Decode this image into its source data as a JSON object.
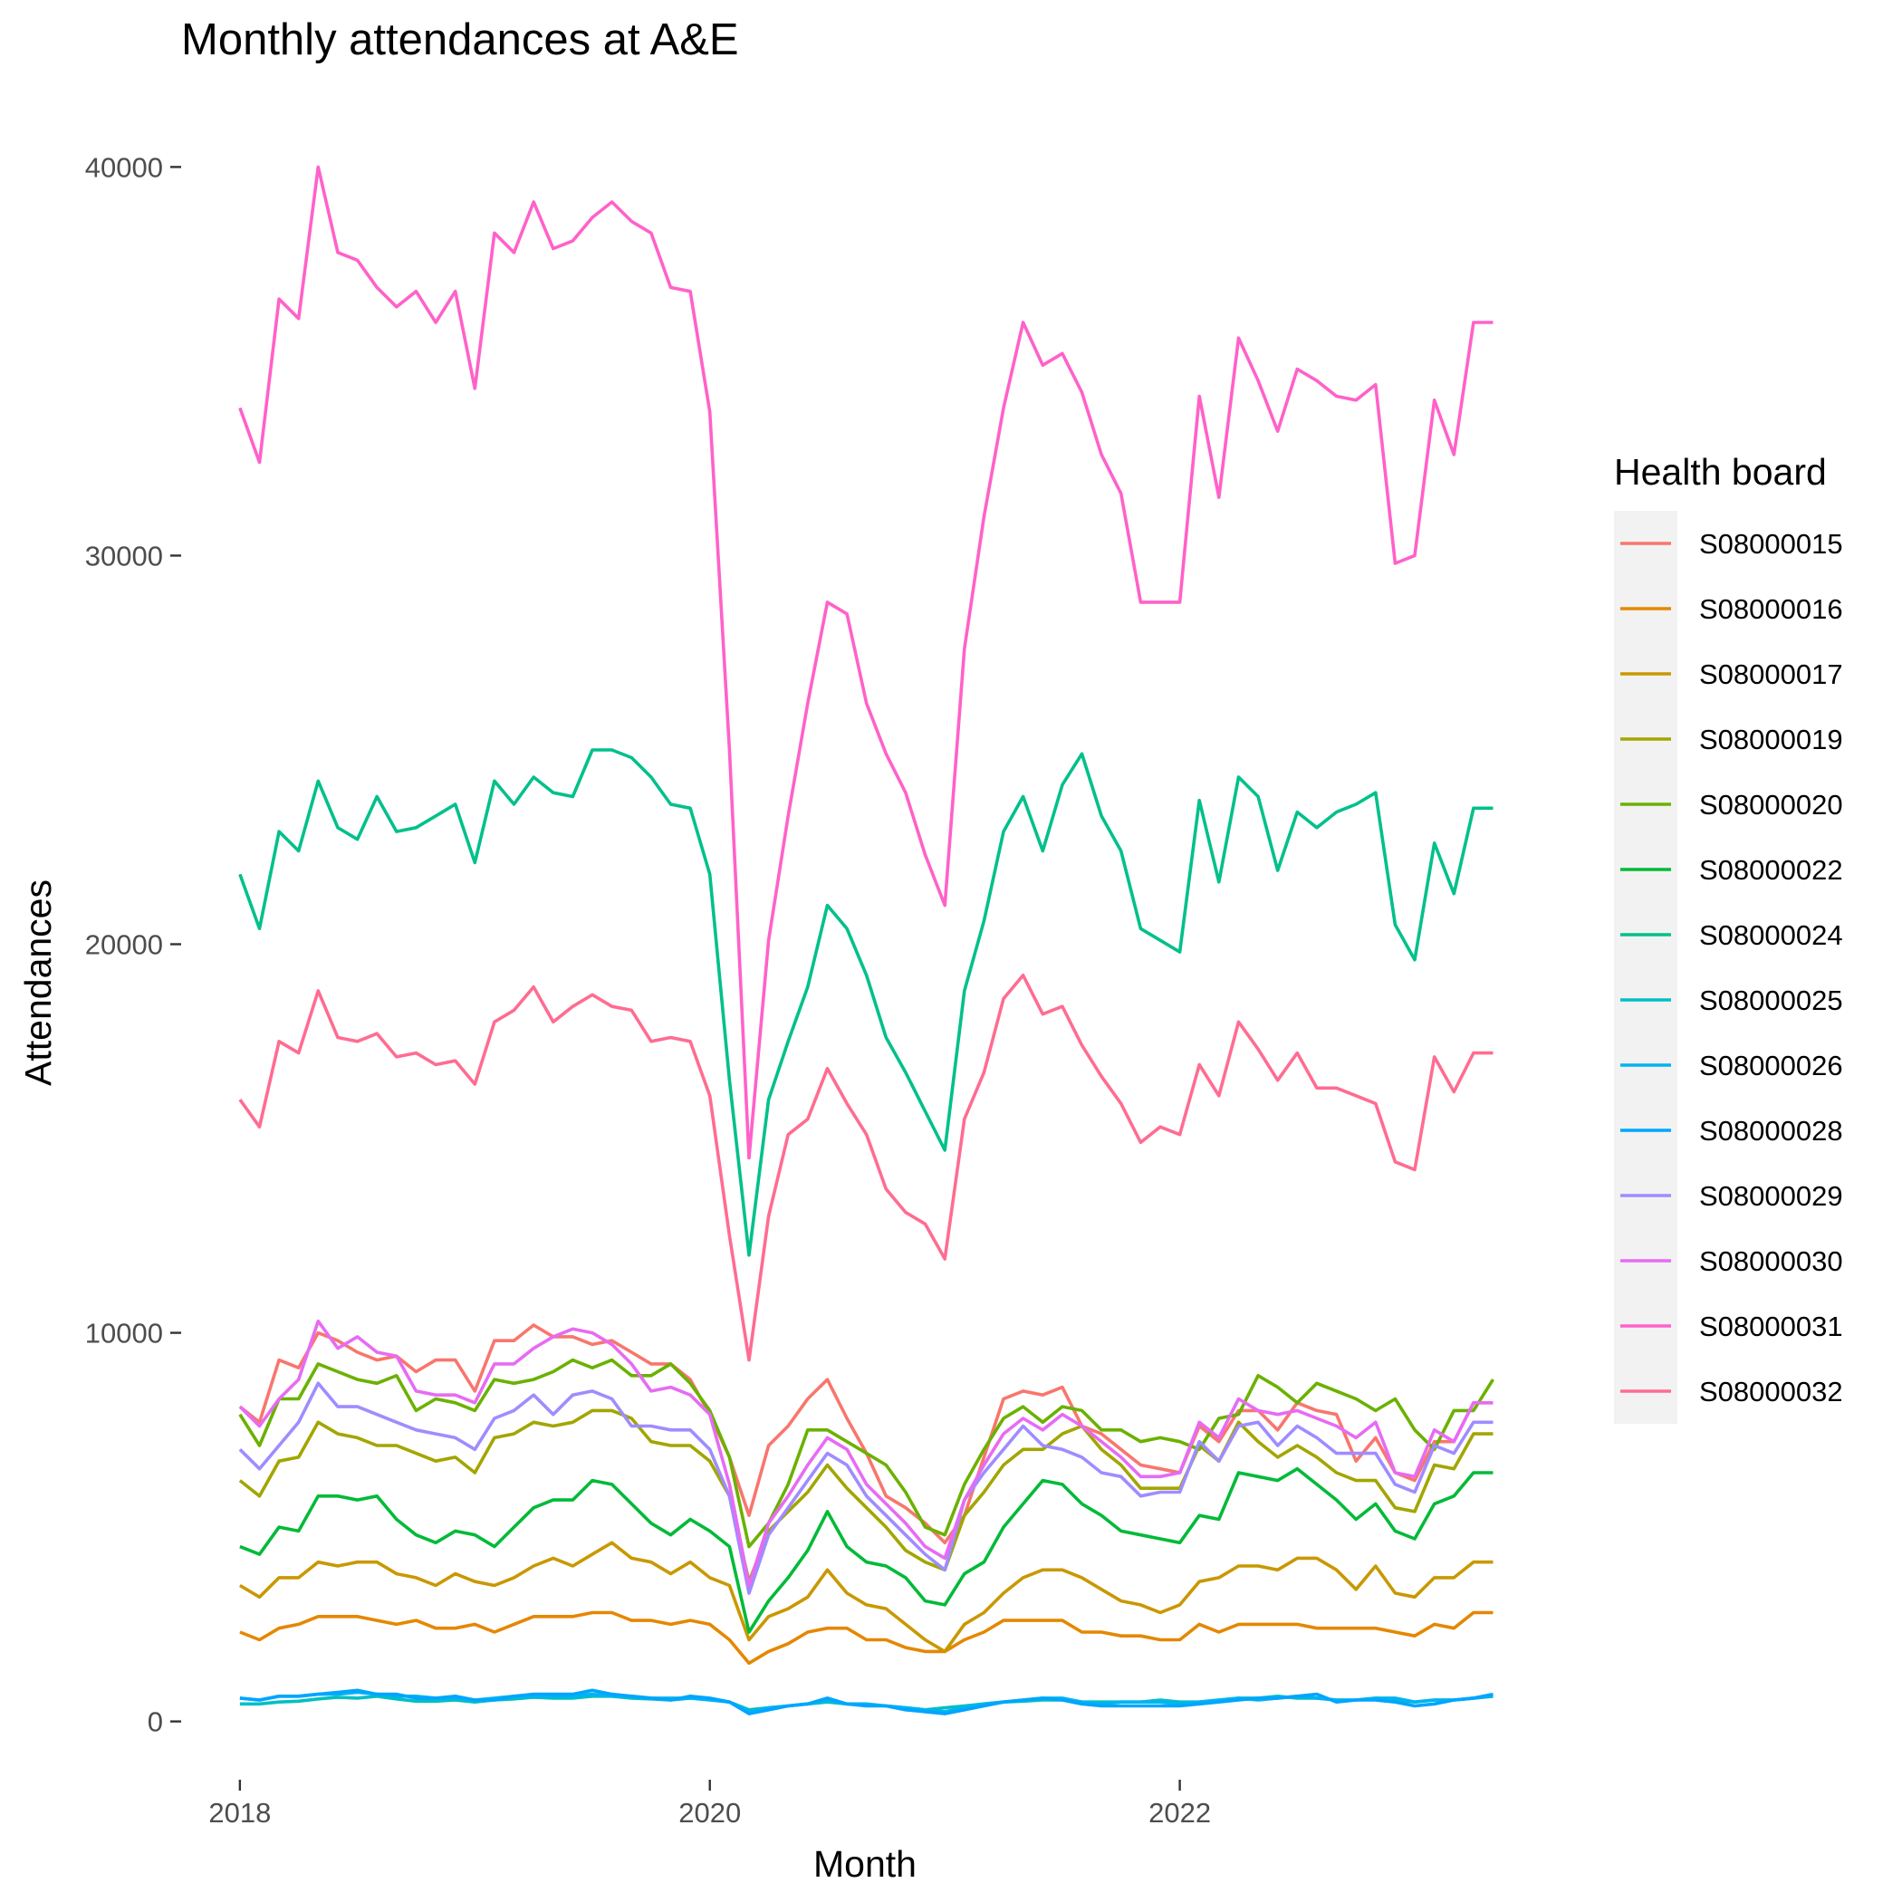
{
  "chart_data": {
    "type": "line",
    "title": "Monthly attendances at A&E",
    "xlabel": "Month",
    "ylabel": "Attendances",
    "x_ticks": [
      "2018",
      "2020",
      "2022"
    ],
    "y_ticks": [
      "0",
      "10000",
      "20000",
      "30000",
      "40000"
    ],
    "ylim": [
      -1500,
      41500
    ],
    "xlim": [
      "2017-10",
      "2023-09"
    ],
    "grid": false,
    "legend": {
      "title": "Health board",
      "placement": "right"
    },
    "x": [
      "2018-01",
      "2018-02",
      "2018-03",
      "2018-04",
      "2018-05",
      "2018-06",
      "2018-07",
      "2018-08",
      "2018-09",
      "2018-10",
      "2018-11",
      "2018-12",
      "2019-01",
      "2019-02",
      "2019-03",
      "2019-04",
      "2019-05",
      "2019-06",
      "2019-07",
      "2019-08",
      "2019-09",
      "2019-10",
      "2019-11",
      "2019-12",
      "2020-01",
      "2020-02",
      "2020-03",
      "2020-04",
      "2020-05",
      "2020-06",
      "2020-07",
      "2020-08",
      "2020-09",
      "2020-10",
      "2020-11",
      "2020-12",
      "2021-01",
      "2021-02",
      "2021-03",
      "2021-04",
      "2021-05",
      "2021-06",
      "2021-07",
      "2021-08",
      "2021-09",
      "2021-10",
      "2021-11",
      "2021-12",
      "2022-01",
      "2022-02",
      "2022-03",
      "2022-04",
      "2022-05",
      "2022-06",
      "2022-07",
      "2022-08",
      "2022-09",
      "2022-10",
      "2022-11",
      "2022-12",
      "2023-01",
      "2023-02",
      "2023-03",
      "2023-04",
      "2023-05"
    ],
    "series": [
      {
        "name": "S08000015",
        "color": "#F8766D",
        "values": [
          8100,
          7700,
          9300,
          9100,
          10000,
          9800,
          9500,
          9300,
          9400,
          9000,
          9300,
          9300,
          8500,
          9800,
          9800,
          10200,
          9900,
          9900,
          9700,
          9800,
          9500,
          9200,
          9200,
          8800,
          7900,
          6800,
          5300,
          7100,
          7600,
          8300,
          8800,
          7800,
          6900,
          5800,
          5500,
          5100,
          4600,
          5300,
          6800,
          8300,
          8500,
          8400,
          8600,
          7600,
          7400,
          7000,
          6600,
          6500,
          6400,
          7600,
          7200,
          8000,
          8000,
          7500,
          8200,
          8000,
          7900,
          6700,
          7300,
          6400,
          6200,
          7200,
          7200,
          8200,
          8200
        ]
      },
      {
        "name": "S08000016",
        "color": "#E58700",
        "values": [
          2300,
          2100,
          2400,
          2500,
          2700,
          2700,
          2700,
          2600,
          2500,
          2600,
          2400,
          2400,
          2500,
          2300,
          2500,
          2700,
          2700,
          2700,
          2800,
          2800,
          2600,
          2600,
          2500,
          2600,
          2500,
          2100,
          1500,
          1800,
          2000,
          2300,
          2400,
          2400,
          2100,
          2100,
          1900,
          1800,
          1800,
          2100,
          2300,
          2600,
          2600,
          2600,
          2600,
          2300,
          2300,
          2200,
          2200,
          2100,
          2100,
          2500,
          2300,
          2500,
          2500,
          2500,
          2500,
          2400,
          2400,
          2400,
          2400,
          2300,
          2200,
          2500,
          2400,
          2800,
          2800
        ]
      },
      {
        "name": "S08000017",
        "color": "#C99800",
        "values": [
          3500,
          3200,
          3700,
          3700,
          4100,
          4000,
          4100,
          4100,
          3800,
          3700,
          3500,
          3800,
          3600,
          3500,
          3700,
          4000,
          4200,
          4000,
          4300,
          4600,
          4200,
          4100,
          3800,
          4100,
          3700,
          3500,
          2100,
          2700,
          2900,
          3200,
          3900,
          3300,
          3000,
          2900,
          2500,
          2100,
          1800,
          2500,
          2800,
          3300,
          3700,
          3900,
          3900,
          3700,
          3400,
          3100,
          3000,
          2800,
          3000,
          3600,
          3700,
          4000,
          4000,
          3900,
          4200,
          4200,
          3900,
          3400,
          4000,
          3300,
          3200,
          3700,
          3700,
          4100,
          4100
        ]
      },
      {
        "name": "S08000019",
        "color": "#A3A500",
        "values": [
          6200,
          5800,
          6700,
          6800,
          7700,
          7400,
          7300,
          7100,
          7100,
          6900,
          6700,
          6800,
          6400,
          7300,
          7400,
          7700,
          7600,
          7700,
          8000,
          8000,
          7800,
          7200,
          7100,
          7100,
          6700,
          5800,
          3600,
          4900,
          5400,
          5900,
          6600,
          6000,
          5500,
          5000,
          4400,
          4100,
          3900,
          5300,
          5900,
          6600,
          7000,
          7000,
          7400,
          7600,
          7000,
          6600,
          6000,
          6000,
          6000,
          7100,
          6700,
          7700,
          7200,
          6800,
          7100,
          6800,
          6400,
          6200,
          6200,
          5500,
          5400,
          6600,
          6500,
          7400,
          7400
        ]
      },
      {
        "name": "S08000020",
        "color": "#6BB100",
        "values": [
          7900,
          7100,
          8300,
          8300,
          9200,
          9000,
          8800,
          8700,
          8900,
          8000,
          8300,
          8200,
          8000,
          8800,
          8700,
          8800,
          9000,
          9300,
          9100,
          9300,
          8900,
          8900,
          9200,
          8700,
          8000,
          6800,
          4500,
          5100,
          6100,
          7500,
          7500,
          7200,
          6900,
          6600,
          5900,
          5000,
          4800,
          6100,
          7000,
          7800,
          8100,
          7700,
          8100,
          8000,
          7500,
          7500,
          7200,
          7300,
          7200,
          7000,
          7800,
          7900,
          8900,
          8600,
          8200,
          8700,
          8500,
          8300,
          8000,
          8300,
          7500,
          7000,
          8000,
          8000,
          8800
        ]
      },
      {
        "name": "S08000022",
        "color": "#00BA38",
        "values": [
          4500,
          4300,
          5000,
          4900,
          5800,
          5800,
          5700,
          5800,
          5200,
          4800,
          4600,
          4900,
          4800,
          4500,
          5000,
          5500,
          5700,
          5700,
          6200,
          6100,
          5600,
          5100,
          4800,
          5200,
          4900,
          4500,
          2300,
          3100,
          3700,
          4400,
          5400,
          4500,
          4100,
          4000,
          3700,
          3100,
          3000,
          3800,
          4100,
          5000,
          5600,
          6200,
          6100,
          5600,
          5300,
          4900,
          4800,
          4700,
          4600,
          5300,
          5200,
          6400,
          6300,
          6200,
          6500,
          6100,
          5700,
          5200,
          5600,
          4900,
          4700,
          5600,
          5800,
          6400,
          6400
        ]
      },
      {
        "name": "S08000024",
        "color": "#00C08B",
        "values": [
          21800,
          20400,
          22900,
          22400,
          24200,
          23000,
          22700,
          23800,
          22900,
          23000,
          23300,
          23600,
          22100,
          24200,
          23600,
          24300,
          23900,
          23800,
          25000,
          25000,
          24800,
          24300,
          23600,
          23500,
          21800,
          16500,
          12000,
          16000,
          17500,
          18900,
          21000,
          20400,
          19200,
          17600,
          16700,
          15700,
          14700,
          18800,
          20600,
          22900,
          23800,
          22400,
          24100,
          24900,
          23300,
          22400,
          20400,
          20100,
          19800,
          23700,
          21600,
          24300,
          23800,
          21900,
          23400,
          23000,
          23400,
          23600,
          23900,
          20500,
          19600,
          22600,
          21300,
          23500,
          23500
        ]
      },
      {
        "name": "S08000025",
        "color": "#00BFC4",
        "values": [
          450,
          450,
          500,
          520,
          580,
          620,
          600,
          650,
          580,
          520,
          520,
          550,
          500,
          550,
          580,
          620,
          600,
          600,
          650,
          650,
          600,
          580,
          550,
          600,
          580,
          500,
          300,
          350,
          400,
          450,
          500,
          450,
          420,
          400,
          350,
          300,
          350,
          400,
          450,
          500,
          520,
          550,
          550,
          500,
          500,
          500,
          500,
          550,
          500,
          500,
          550,
          600,
          600,
          650,
          600,
          600,
          550,
          550,
          600,
          550,
          500,
          550,
          550,
          600,
          650
        ]
      },
      {
        "name": "S08000026",
        "color": "#00B4EF",
        "values": [
          600,
          550,
          650,
          650,
          700,
          700,
          750,
          700,
          650,
          650,
          600,
          600,
          550,
          600,
          650,
          650,
          650,
          650,
          700,
          650,
          650,
          600,
          600,
          600,
          550,
          500,
          250,
          350,
          400,
          450,
          550,
          450,
          450,
          400,
          350,
          300,
          250,
          350,
          450,
          500,
          550,
          600,
          600,
          500,
          450,
          500,
          500,
          500,
          450,
          500,
          550,
          600,
          550,
          600,
          650,
          600,
          550,
          550,
          600,
          600,
          500,
          550,
          550,
          600,
          650
        ]
      },
      {
        "name": "S08000028",
        "color": "#00A5FF",
        "values": [
          600,
          550,
          650,
          650,
          700,
          750,
          800,
          700,
          700,
          600,
          600,
          650,
          550,
          550,
          650,
          700,
          700,
          700,
          800,
          700,
          650,
          600,
          550,
          650,
          600,
          500,
          200,
          300,
          400,
          450,
          600,
          450,
          400,
          400,
          300,
          250,
          200,
          300,
          400,
          500,
          550,
          600,
          550,
          450,
          400,
          400,
          400,
          400,
          400,
          450,
          500,
          550,
          600,
          600,
          650,
          700,
          500,
          550,
          550,
          500,
          400,
          450,
          550,
          600,
          700
        ]
      },
      {
        "name": "S08000029",
        "color": "#9F8CFF",
        "values": [
          7000,
          6500,
          7100,
          7700,
          8700,
          8100,
          8100,
          7900,
          7700,
          7500,
          7400,
          7300,
          7000,
          7800,
          8000,
          8400,
          7900,
          8400,
          8500,
          8300,
          7600,
          7600,
          7500,
          7500,
          7000,
          5800,
          3300,
          4800,
          5500,
          6200,
          6900,
          6600,
          5800,
          5300,
          4800,
          4300,
          3900,
          5700,
          6400,
          7000,
          7600,
          7100,
          7000,
          6800,
          6400,
          6300,
          5800,
          5900,
          5900,
          7200,
          6700,
          7600,
          7700,
          7100,
          7600,
          7300,
          6900,
          6900,
          6900,
          6100,
          5900,
          7100,
          6900,
          7700,
          7700
        ]
      },
      {
        "name": "S08000030",
        "color": "#E76BF3",
        "values": [
          8100,
          7600,
          8300,
          8800,
          10300,
          9600,
          9900,
          9500,
          9400,
          8500,
          8400,
          8400,
          8200,
          9200,
          9200,
          9600,
          9900,
          10100,
          10000,
          9700,
          9200,
          8500,
          8600,
          8400,
          7900,
          6100,
          3500,
          5100,
          5800,
          6600,
          7300,
          7000,
          6100,
          5600,
          5100,
          4500,
          4200,
          5700,
          6600,
          7400,
          7800,
          7500,
          7900,
          7600,
          7200,
          6800,
          6300,
          6300,
          6400,
          7700,
          7300,
          8300,
          8000,
          7900,
          8000,
          7800,
          7600,
          7300,
          7700,
          6400,
          6300,
          7500,
          7200,
          8200,
          8200
        ]
      },
      {
        "name": "S08000031",
        "color": "#FF61C9",
        "values": [
          33800,
          32400,
          36600,
          36100,
          40000,
          37800,
          37600,
          36900,
          36400,
          36800,
          36000,
          36800,
          34300,
          38300,
          37800,
          39100,
          37900,
          38100,
          38700,
          39100,
          38600,
          38300,
          36900,
          36800,
          33700,
          25000,
          14500,
          20100,
          23300,
          26200,
          28800,
          28500,
          26200,
          24900,
          23900,
          22300,
          21000,
          27600,
          31000,
          33800,
          36000,
          34900,
          35200,
          34200,
          32600,
          31600,
          28800,
          28800,
          28800,
          34100,
          31500,
          35600,
          34500,
          33200,
          34800,
          34500,
          34100,
          34000,
          34400,
          29800,
          30000,
          34000,
          32600,
          36000,
          36000
        ]
      },
      {
        "name": "S08000032",
        "color": "#FF6C91",
        "values": [
          16000,
          15300,
          17500,
          17200,
          18800,
          17600,
          17500,
          17700,
          17100,
          17200,
          16900,
          17000,
          16400,
          18000,
          18300,
          18900,
          18000,
          18400,
          18700,
          18400,
          18300,
          17500,
          17600,
          17500,
          16100,
          12500,
          9300,
          13000,
          15100,
          15500,
          16800,
          15900,
          15100,
          13700,
          13100,
          12800,
          11900,
          15500,
          16700,
          18600,
          19200,
          18200,
          18400,
          17400,
          16600,
          15900,
          14900,
          15300,
          15100,
          16900,
          16100,
          18000,
          17300,
          16500,
          17200,
          16300,
          16300,
          16100,
          15900,
          14400,
          14200,
          17100,
          16200,
          17200,
          17200
        ]
      }
    ]
  }
}
